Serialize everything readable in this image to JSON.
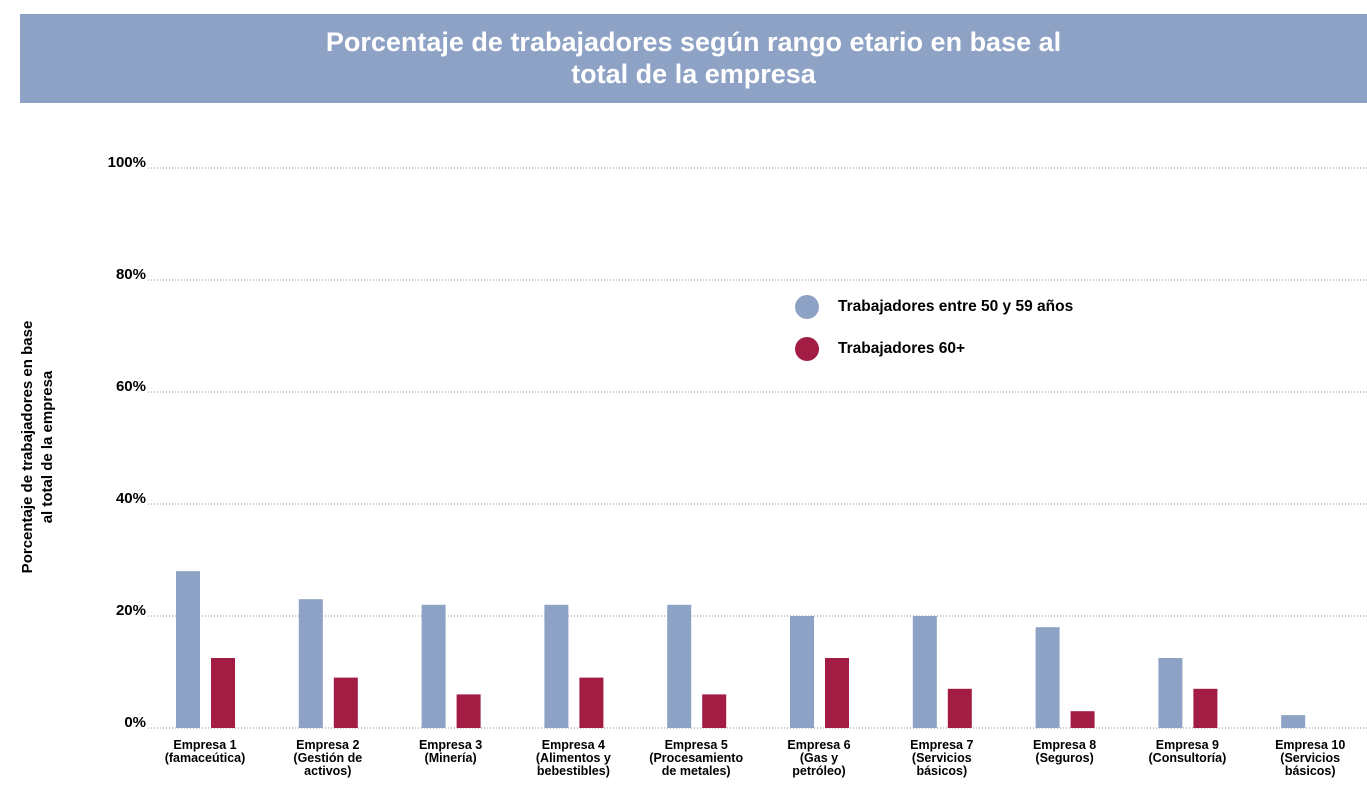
{
  "chart_data": {
    "type": "bar",
    "title": "Porcentaje de trabajadores según rango etario en base al\ntotal de la empresa",
    "y_label": "Porcentaje de trabajadores en base\nal total de la empresa",
    "categories": [
      "Empresa 1\n(famaceútica)",
      "Empresa 2\n(Gestión de\nactivos)",
      "Empresa 3\n(Minería)",
      "Empresa 4\n(Alimentos y\nbebestibles)",
      "Empresa 5\n(Procesamiento\nde metales)",
      "Empresa 6\n(Gas y\npetróleo)",
      "Empresa 7\n(Servicios\nbásicos)",
      "Empresa 8\n(Seguros)",
      "Empresa 9\n(Consultoría)",
      "Empresa 10\n(Servicios\nbásicos)"
    ],
    "series": [
      {
        "name": "Trabajadores entre 50 y 59 años",
        "color": "#8da2c5",
        "values": [
          28,
          23,
          22,
          22,
          22,
          20,
          20,
          18,
          12.5,
          2.3
        ]
      },
      {
        "name": "Trabajadores 60+",
        "color": "#a31c44",
        "values": [
          12.5,
          9,
          6,
          9,
          6,
          12.5,
          7,
          3,
          7,
          null
        ]
      }
    ],
    "ylim": [
      0,
      100
    ],
    "yticks": [
      {
        "value": 0,
        "label": "0%"
      },
      {
        "value": 20,
        "label": "20%"
      },
      {
        "value": 40,
        "label": "40%"
      },
      {
        "value": 60,
        "label": "60%"
      },
      {
        "value": 80,
        "label": "80%"
      },
      {
        "value": 100,
        "label": "100%"
      }
    ],
    "grid": true,
    "banner_color": "#8da2c5"
  }
}
